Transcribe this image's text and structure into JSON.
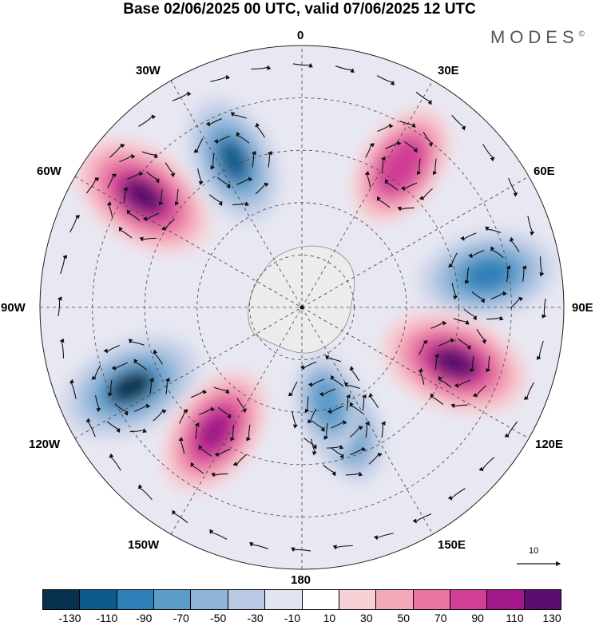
{
  "title": "Base 02/06/2025 00 UTC, valid 07/06/2025 12 UTC",
  "brand": "MODES",
  "brand_mark": "©",
  "longitude_labels": {
    "n": "0",
    "nw30": "30W",
    "ne30": "30E",
    "w60": "60W",
    "e60": "60E",
    "w90": "90W",
    "e90": "90E",
    "w120": "120W",
    "e120": "120E",
    "w150": "150W",
    "e150": "150E",
    "s": "180"
  },
  "reference_vector": {
    "label": "10"
  },
  "colorbar": {
    "colors": [
      "#08304f",
      "#0d5a8a",
      "#2f7fb8",
      "#5b9cc9",
      "#8fb5d9",
      "#b9c8e3",
      "#e2e3f0",
      "#ffffff",
      "#f7d1d6",
      "#f4a9bb",
      "#ea75a2",
      "#d03e96",
      "#a2178a",
      "#5a0f70"
    ],
    "tick_labels": [
      "-130",
      "-110",
      "-90",
      "-70",
      "-50",
      "-30",
      "-10",
      "10",
      "30",
      "50",
      "70",
      "90",
      "110",
      "130"
    ]
  },
  "features": [
    {
      "name": "ridge-south-pacific",
      "lon": -55,
      "lat_ring": 0.74,
      "value": 125,
      "size": 1.0,
      "color": "#5a0f70"
    },
    {
      "name": "trough-south-atlantic-w",
      "lon": -25,
      "lat_ring": 0.62,
      "value": -100,
      "size": 0.9,
      "color": "#0d5a8a"
    },
    {
      "name": "ridge-south-atlantic",
      "lon": 35,
      "lat_ring": 0.66,
      "value": 95,
      "size": 0.85,
      "color": "#d03e96"
    },
    {
      "name": "trough-indian-west",
      "lon": 80,
      "lat_ring": 0.72,
      "value": -100,
      "size": 0.95,
      "color": "#2f7fb8"
    },
    {
      "name": "ridge-indian-east",
      "lon": 110,
      "lat_ring": 0.62,
      "value": 125,
      "size": 1.0,
      "color": "#5a0f70"
    },
    {
      "name": "trough-tasman",
      "lon": 160,
      "lat_ring": 0.5,
      "value": -80,
      "size": 0.75,
      "color": "#2f7fb8"
    },
    {
      "name": "trough-southwest-pacific",
      "lon": -115,
      "lat_ring": 0.72,
      "value": -130,
      "size": 1.0,
      "color": "#08304f"
    },
    {
      "name": "ridge-southeast-pacific",
      "lon": -145,
      "lat_ring": 0.58,
      "value": 115,
      "size": 0.9,
      "color": "#a2178a"
    },
    {
      "name": "trough-ross",
      "lon": 165,
      "lat_ring": 0.38,
      "value": -70,
      "size": 0.7,
      "color": "#5b9cc9"
    }
  ]
}
